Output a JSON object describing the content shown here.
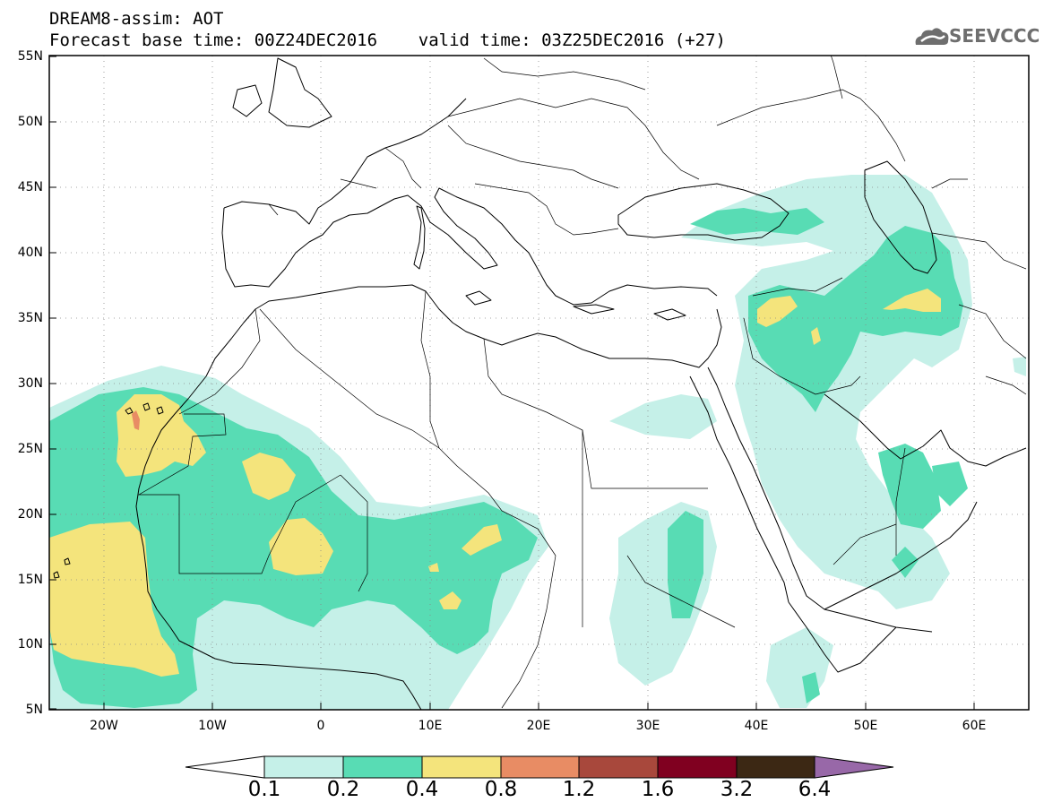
{
  "header": {
    "title_line1": "DREAM8-assim: AOT",
    "title_line2": "Forecast base time: 00Z24DEC2016    valid time: 03Z25DEC2016 (+27)",
    "logo_text": "SEEVCCC"
  },
  "map": {
    "projection": "lat-lon",
    "lon_range": [
      -25,
      65
    ],
    "lat_range": [
      5,
      55
    ],
    "grid": "dotted",
    "lat_labels": [
      "55N",
      "50N",
      "45N",
      "40N",
      "35N",
      "30N",
      "25N",
      "20N",
      "15N",
      "10N",
      "5N"
    ],
    "lon_labels": [
      "20W",
      "10W",
      "0",
      "10E",
      "20E",
      "30E",
      "40E",
      "50E",
      "60E"
    ]
  },
  "colorbar": {
    "labels": [
      "0.1",
      "0.2",
      "0.4",
      "0.8",
      "1.2",
      "1.6",
      "3.2",
      "6.4"
    ],
    "colors": [
      "#ffffff",
      "#c5f0e8",
      "#58dcb4",
      "#f4e47c",
      "#e88c64",
      "#a8483c",
      "#800020",
      "#3c2814",
      "#9868a8"
    ]
  }
}
